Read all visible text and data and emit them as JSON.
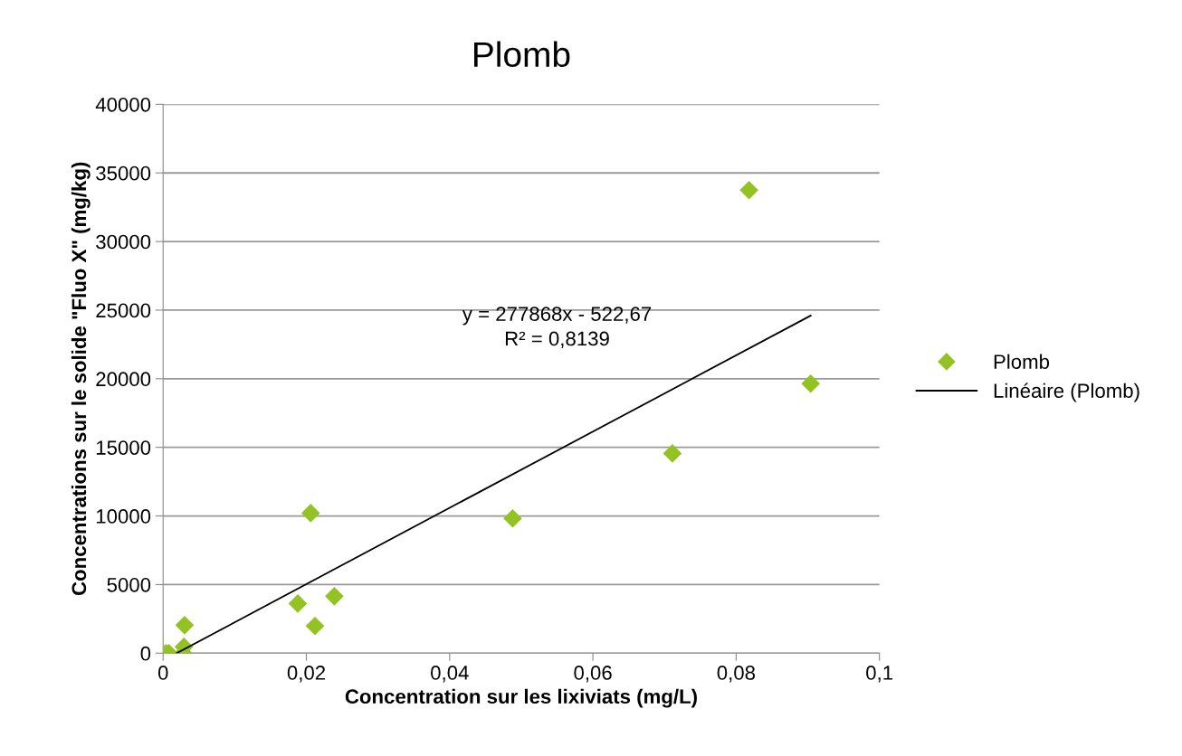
{
  "chart_data": {
    "type": "scatter",
    "title": "Plomb",
    "xlabel": "Concentration sur les lixiviats (mg/L)",
    "ylabel": "Concentrations sur le solide \"Fluo X\" (mg/kg)",
    "series": [
      {
        "name": "Plomb",
        "color": "#92c323",
        "marker": "diamond",
        "x": [
          0.0004,
          0.0008,
          0.0028,
          0.0029,
          0.003,
          0.0188,
          0.0206,
          0.0212,
          0.0239,
          0.0488,
          0.0711,
          0.0818,
          0.0904
        ],
        "values": [
          0,
          0,
          0,
          460,
          2040,
          3620,
          10210,
          1980,
          4150,
          9820,
          14560,
          33750,
          19640
        ]
      },
      {
        "name": "Linéaire (Plomb)",
        "type": "line",
        "color": "#000000",
        "marker": "none",
        "x": [
          0.0019,
          0.0904
        ],
        "values": [
          0,
          24600
        ]
      }
    ],
    "annotations": [
      "y = 277868x - 522,67",
      "R² = 0,8139"
    ],
    "xlim": [
      0,
      0.1
    ],
    "xticks": [
      {
        "value": 0,
        "label": "0"
      },
      {
        "value": 0.02,
        "label": "0,02"
      },
      {
        "value": 0.04,
        "label": "0,04"
      },
      {
        "value": 0.06,
        "label": "0,06"
      },
      {
        "value": 0.08,
        "label": "0,08"
      },
      {
        "value": 0.1,
        "label": "0,1"
      }
    ],
    "ylim": [
      0,
      40000
    ],
    "yticks": [
      0,
      5000,
      10000,
      15000,
      20000,
      25000,
      30000,
      35000,
      40000
    ],
    "grid": "y",
    "legend": "right"
  }
}
